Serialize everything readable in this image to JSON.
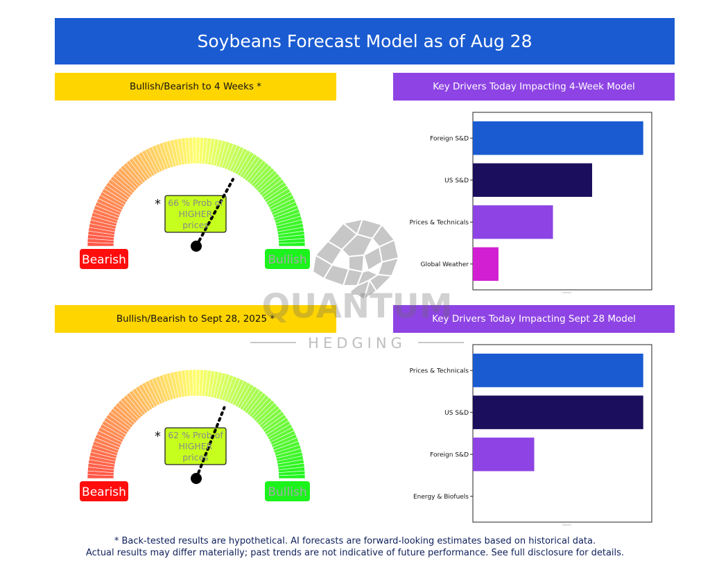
{
  "header": {
    "title": "Soybeans Forecast Model as of Aug 28"
  },
  "panels": {
    "gauge_4week_title": "Bullish/Bearish to 4 Weeks *",
    "gauge_sept_title": "Bullish/Bearish to Sept 28, 2025 *",
    "drivers_4week_title": "Key Drivers Today Impacting 4-Week Model",
    "drivers_sept_title": "Key Drivers Today Impacting Sept 28 Model"
  },
  "colors": {
    "banner": "#1a5bd1",
    "panel_yellow": "#ffd500",
    "panel_purple": "#8e44e4",
    "bearish": "#ff0d0d",
    "bullish": "#1cf21c",
    "prob_box": "#c6ff1e",
    "bar_blue": "#1a5bd1",
    "bar_navy": "#1b0e5c",
    "bar_purple": "#8e44e4",
    "bar_magenta": "#d21fd2"
  },
  "gauges": [
    {
      "probability": 66,
      "prob_line1": "66 % Prob of",
      "prob_line2": "HIGHER",
      "prob_line3": "prices",
      "asterisk": "*",
      "bearish_label": "Bearish",
      "bullish_label": "Bullish"
    },
    {
      "probability": 62,
      "prob_line1": "62 % Prob of",
      "prob_line2": "HIGHER",
      "prob_line3": "prices",
      "asterisk": "*",
      "bearish_label": "Bearish",
      "bullish_label": "Bullish"
    }
  ],
  "chart_data": [
    {
      "type": "bar",
      "orientation": "horizontal",
      "categories": [
        "Foreign S&D",
        "US S&D",
        "Prices & Technicals",
        "Global Weather"
      ],
      "values": [
        1.0,
        0.7,
        0.47,
        0.15
      ],
      "bar_colors": [
        "#1a5bd1",
        "#1b0e5c",
        "#8e44e4",
        "#d21fd2"
      ],
      "xlim": [
        0,
        1.05
      ],
      "grid": false,
      "xlabel": "",
      "ylabel": ""
    },
    {
      "type": "bar",
      "orientation": "horizontal",
      "categories": [
        "Prices & Technicals",
        "US S&D",
        "Foreign S&D",
        "Energy & Biofuels"
      ],
      "values": [
        1.0,
        1.0,
        0.36,
        0
      ],
      "bar_colors": [
        "#1a5bd1",
        "#1b0e5c",
        "#8e44e4",
        "#d21fd2"
      ],
      "xlim": [
        0,
        1.05
      ],
      "grid": false,
      "xlabel": "",
      "ylabel": ""
    }
  ],
  "watermark": {
    "name": "QUANTUM",
    "sub": "HEDGING"
  },
  "footnote": {
    "line1": "* Back-tested results are hypothetical. AI forecasts are forward-looking estimates based on historical data.",
    "line2": "Actual results may differ materially; past trends are not indicative of future performance. See full disclosure for details."
  }
}
